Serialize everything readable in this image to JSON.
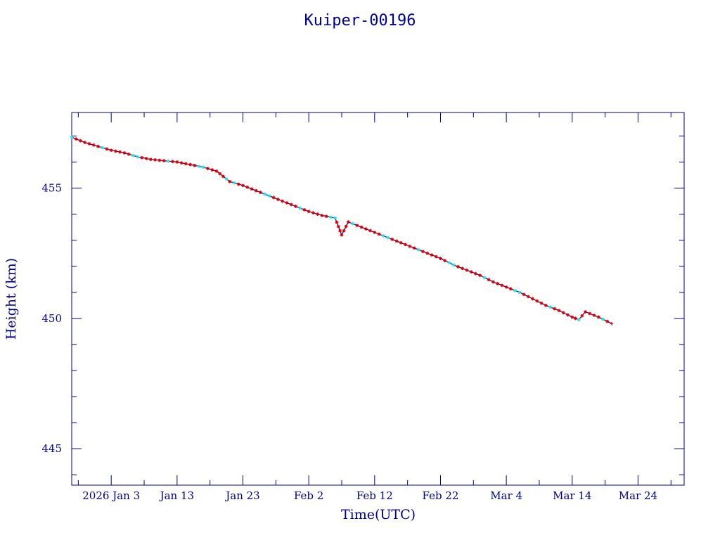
{
  "chart_data": {
    "type": "line",
    "title": "Kuiper-00196",
    "xlabel": "Time(UTC)",
    "ylabel": "Height (km)",
    "x_ticks": [
      "2026 Jan  3",
      "Jan 13",
      "Jan 23",
      "Feb  2",
      "Feb 12",
      "Feb 22",
      "Mar  4",
      "Mar 14",
      "Mar 24"
    ],
    "y_ticks": [
      "445",
      "450",
      "455"
    ],
    "xlim": [
      "2025-12-28",
      "2026-03-31"
    ],
    "ylim": [
      443.6,
      457.9
    ],
    "grid": false,
    "series": [
      {
        "style": "line+markers",
        "points": [
          [
            "2025-12-28",
            456.95
          ],
          [
            "2025-12-30",
            456.75
          ],
          [
            "2026-01-01",
            456.6
          ],
          [
            "2026-01-03",
            456.45
          ],
          [
            "2026-01-05",
            456.35
          ],
          [
            "2026-01-07",
            456.2
          ],
          [
            "2026-01-09",
            456.1
          ],
          [
            "2026-01-11",
            456.05
          ],
          [
            "2026-01-13",
            456.0
          ],
          [
            "2026-01-15",
            455.9
          ],
          [
            "2026-01-17",
            455.8
          ],
          [
            "2026-01-19",
            455.65
          ],
          [
            "2026-01-21",
            455.25
          ],
          [
            "2026-01-23",
            455.1
          ],
          [
            "2026-01-25",
            454.9
          ],
          [
            "2026-01-27",
            454.7
          ],
          [
            "2026-01-29",
            454.5
          ],
          [
            "2026-01-31",
            454.3
          ],
          [
            "2026-02-02",
            454.1
          ],
          [
            "2026-02-04",
            453.95
          ],
          [
            "2026-02-06",
            453.85
          ],
          [
            "2026-02-07",
            453.2
          ],
          [
            "2026-02-08",
            453.7
          ],
          [
            "2026-02-10",
            453.5
          ],
          [
            "2026-02-12",
            453.3
          ],
          [
            "2026-02-14",
            453.1
          ],
          [
            "2026-02-16",
            452.9
          ],
          [
            "2026-02-18",
            452.7
          ],
          [
            "2026-02-20",
            452.5
          ],
          [
            "2026-02-22",
            452.3
          ],
          [
            "2026-02-24",
            452.05
          ],
          [
            "2026-02-26",
            451.85
          ],
          [
            "2026-02-28",
            451.65
          ],
          [
            "2026-03-02",
            451.4
          ],
          [
            "2026-03-04",
            451.2
          ],
          [
            "2026-03-06",
            451.0
          ],
          [
            "2026-03-08",
            450.75
          ],
          [
            "2026-03-10",
            450.5
          ],
          [
            "2026-03-12",
            450.3
          ],
          [
            "2026-03-14",
            450.05
          ],
          [
            "2026-03-15",
            449.95
          ],
          [
            "2026-03-16",
            450.25
          ],
          [
            "2026-03-18",
            450.05
          ],
          [
            "2026-03-20",
            449.8
          ]
        ]
      }
    ]
  },
  "colors": {
    "frame": "#00008b",
    "text": "#00008b",
    "line": "#00008b",
    "marker_primary": "#e00000",
    "marker_secondary": "#33dddd",
    "background": "#ffffff"
  }
}
